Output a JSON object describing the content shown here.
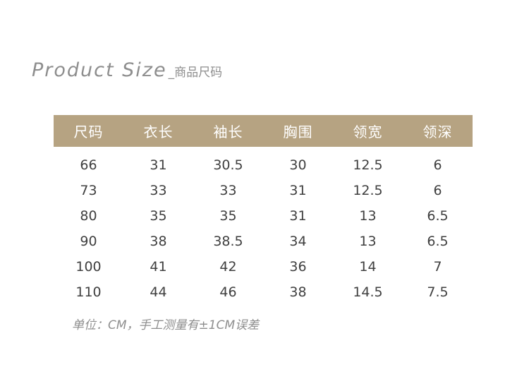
{
  "title": {
    "en": "Product Size",
    "cn": "_商品尺码"
  },
  "table": {
    "headers": [
      "尺码",
      "衣长",
      "袖长",
      "胸围",
      "领宽",
      "领深"
    ],
    "rows": [
      [
        "66",
        "31",
        "30.5",
        "30",
        "12.5",
        "6"
      ],
      [
        "73",
        "33",
        "33",
        "31",
        "12.5",
        "6"
      ],
      [
        "80",
        "35",
        "35",
        "31",
        "13",
        "6.5"
      ],
      [
        "90",
        "38",
        "38.5",
        "34",
        "13",
        "6.5"
      ],
      [
        "100",
        "41",
        "42",
        "36",
        "14",
        "7"
      ],
      [
        "110",
        "44",
        "46",
        "38",
        "14.5",
        "7.5"
      ]
    ]
  },
  "note": "单位：CM，手工测量有±1CM误差",
  "colors": {
    "header_bg": "#b6a382",
    "title_text": "#8e8e8e",
    "cell_text": "#3f3f3f"
  }
}
